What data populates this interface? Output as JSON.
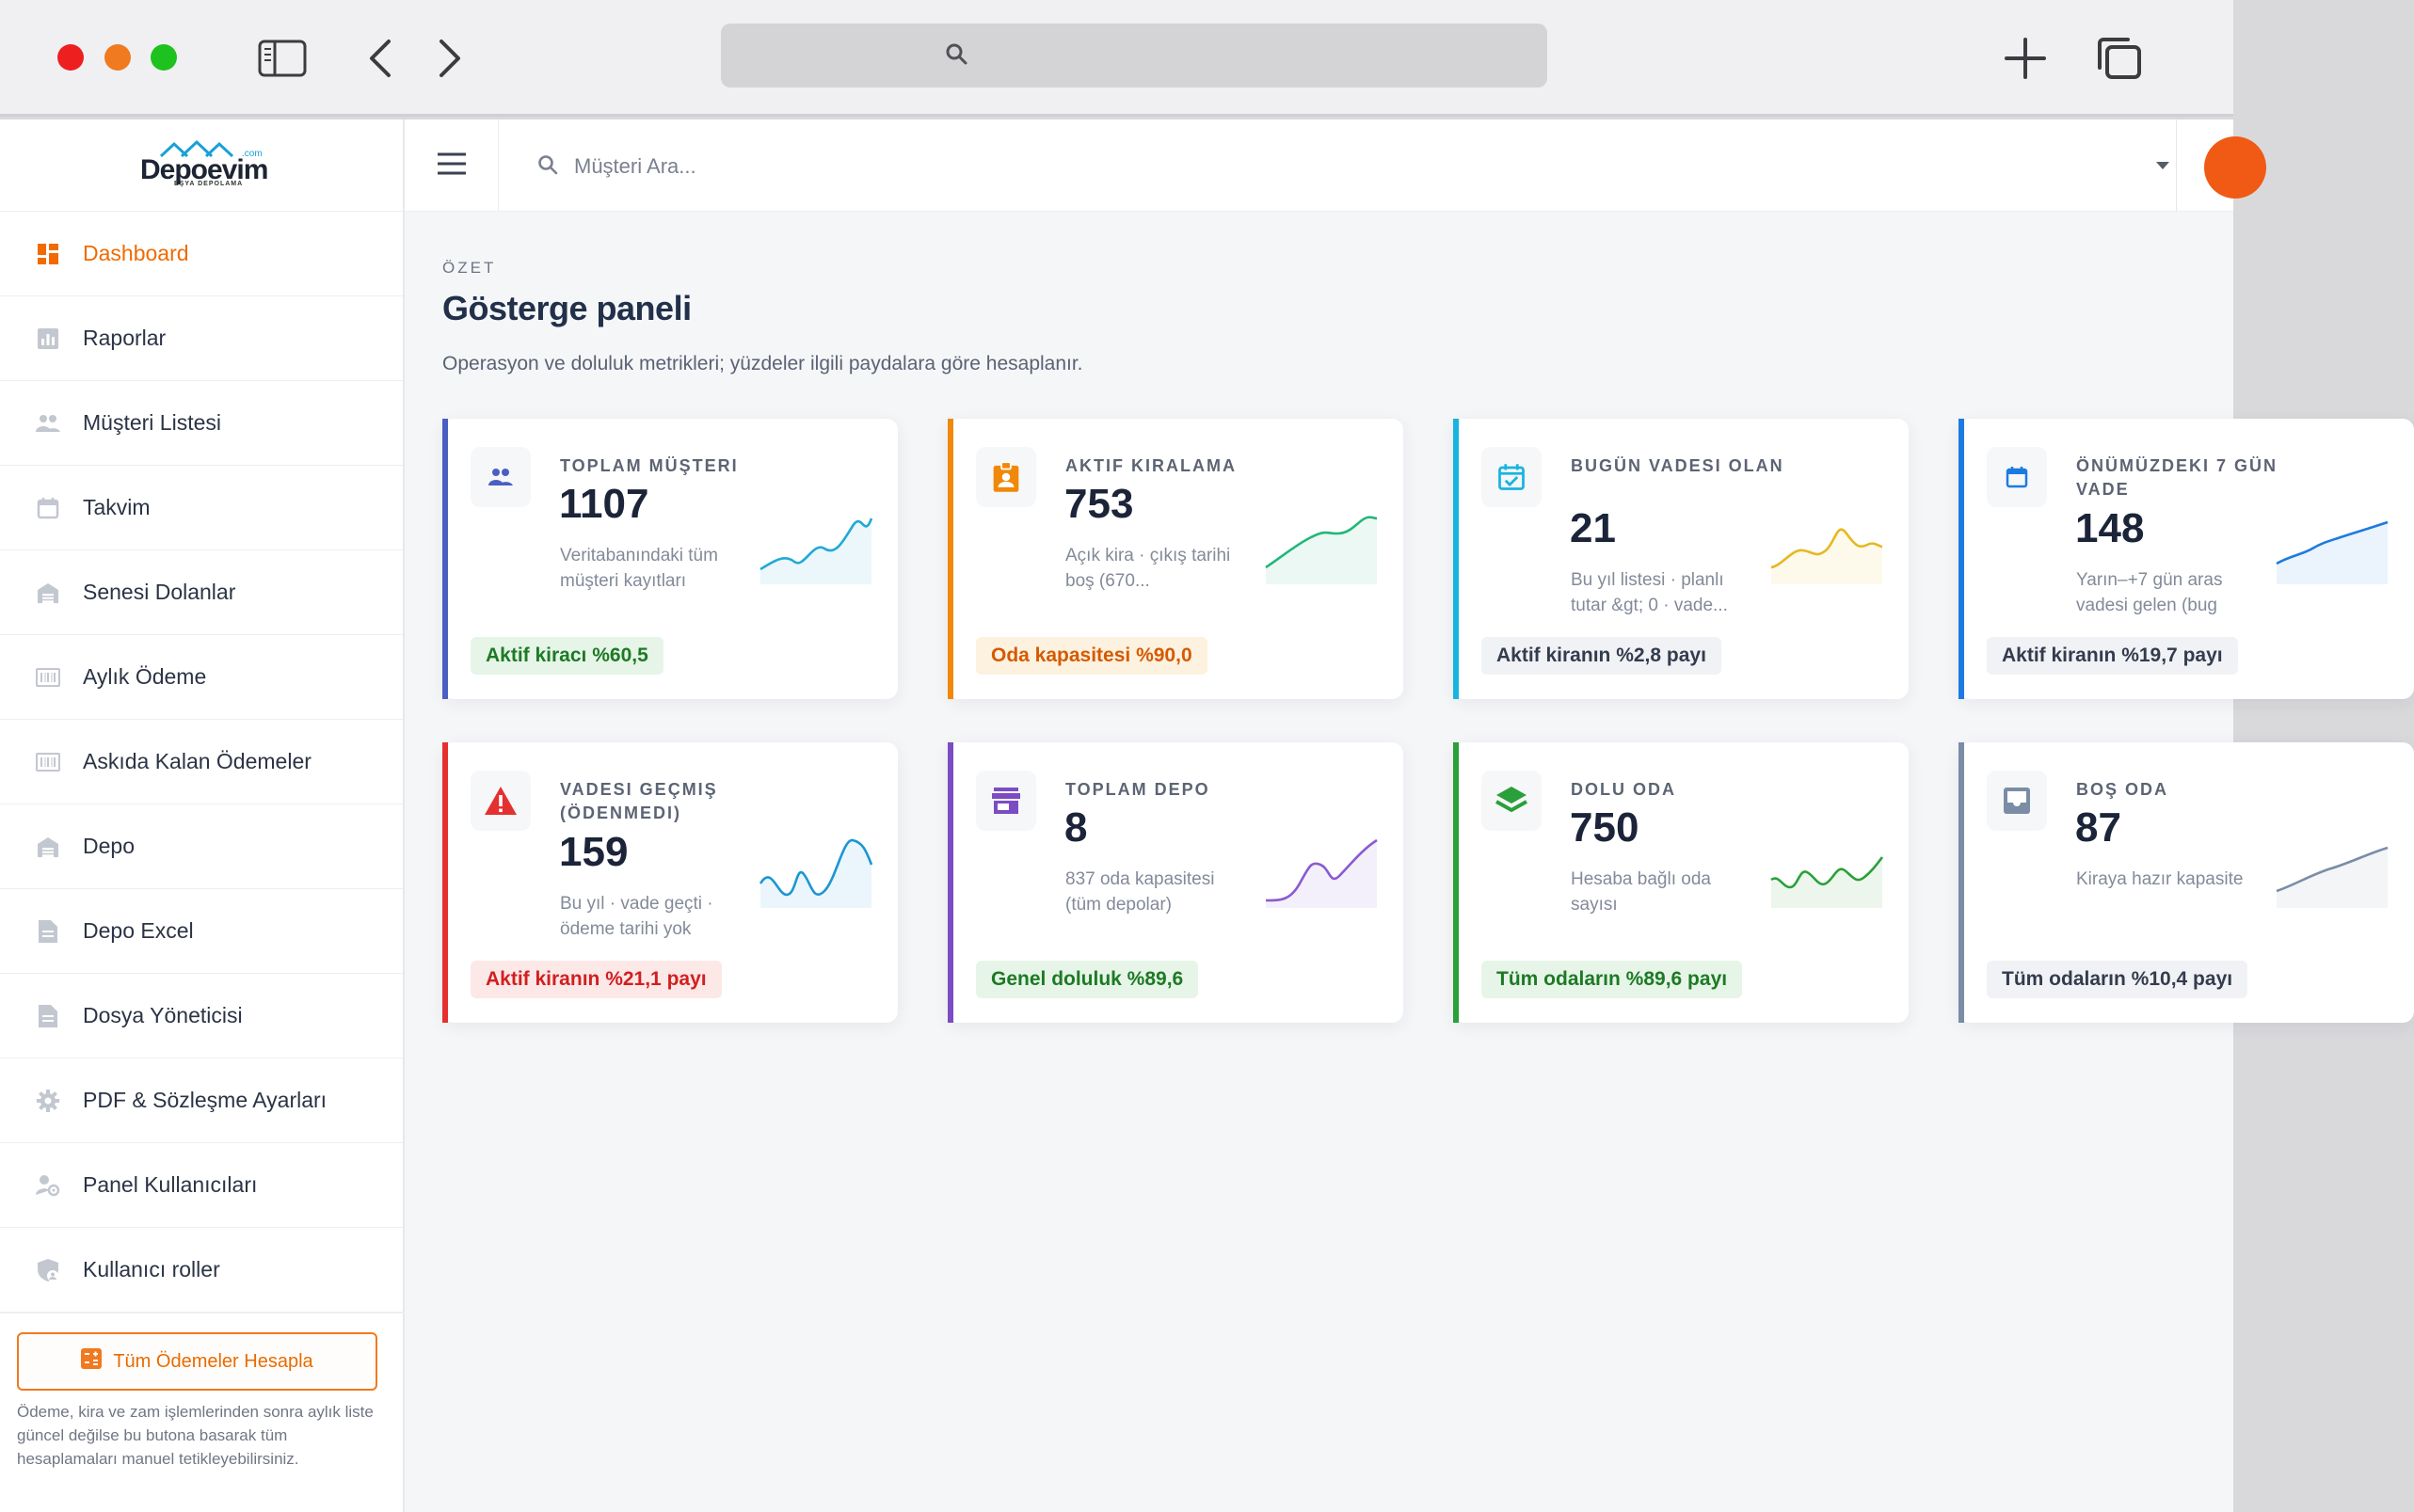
{
  "search": {
    "placeholder": "Müşteri Ara..."
  },
  "logo": {
    "name_a": "Depo",
    "name_b": "evim",
    "com": ".com",
    "tagline": "EŞYA DEPOLAMA"
  },
  "sidebar": {
    "items": [
      {
        "label": "Dashboard",
        "icon": "dashboard-icon",
        "active": true
      },
      {
        "label": "Raporlar",
        "icon": "chart-icon"
      },
      {
        "label": "Müşteri Listesi",
        "icon": "people-icon"
      },
      {
        "label": "Takvim",
        "icon": "calendar-icon"
      },
      {
        "label": "Senesi Dolanlar",
        "icon": "warehouse-icon"
      },
      {
        "label": "Aylık Ödeme",
        "icon": "barcode-icon"
      },
      {
        "label": "Askıda Kalan Ödemeler",
        "icon": "barcode-icon"
      },
      {
        "label": "Depo",
        "icon": "warehouse-icon"
      },
      {
        "label": "Depo Excel",
        "icon": "document-icon"
      },
      {
        "label": "Dosya Yöneticisi",
        "icon": "document-icon"
      },
      {
        "label": "PDF & Sözleşme Ayarları",
        "icon": "gear-icon"
      },
      {
        "label": "Panel Kullanıcıları",
        "icon": "user-gear-icon"
      },
      {
        "label": "Kullanıcı roller",
        "icon": "shield-user-icon"
      }
    ],
    "calc_button": "Tüm Ödemeler Hesapla",
    "calc_note": "Ödeme, kira ve zam işlemlerinden sonra aylık liste güncel değilse bu butona basarak tüm hesaplamaları manuel tetikleyebilirsiniz."
  },
  "main": {
    "eyebrow": "ÖZET",
    "title": "Gösterge paneli",
    "subtitle": "Operasyon ve doluluk metrikleri; yüzdeler ilgili paydalara göre hesaplanır."
  },
  "cards": [
    {
      "label": "TOPLAM MÜŞTERI",
      "value": "1107",
      "desc": "Veritabanındaki tüm müşteri kayıtları",
      "pill": "Aktif kiracı %60,5",
      "pill_style": "green",
      "accent": "#4a5fc1",
      "icon": "people-icon",
      "spark_color": "#22a9d6"
    },
    {
      "label": "AKTIF KIRALAMA",
      "value": "753",
      "desc": "Açık kira · çıkış tarihi boş (670...",
      "pill": "Oda kapasitesi %90,0",
      "pill_style": "orange",
      "accent": "#f0890a",
      "icon": "badge-icon",
      "spark_color": "#22b67a"
    },
    {
      "label": "BUGÜN VADESI OLAN",
      "value": "21",
      "desc": "Bu yıl listesi · planlı tutar &gt; 0 · vade...",
      "pill": "Aktif kiranın %2,8 payı",
      "pill_style": "gray",
      "accent": "#18b4e0",
      "icon": "calendar-check-icon",
      "spark_color": "#e6b820"
    },
    {
      "label": "ÖNÜMÜZDEKI 7 GÜN VADE",
      "value": "148",
      "desc": "Yarın–+7 gün aras vadesi gelen (bug",
      "pill": "Aktif kiranın %19,7 payı",
      "pill_style": "gray",
      "accent": "#1c7be0",
      "icon": "calendar-icon",
      "spark_color": "#1c7be0"
    },
    {
      "label": "VADESI GEÇMIŞ (ÖDENMEDI)",
      "value": "159",
      "desc": "Bu yıl · vade geçti · ödeme tarihi yok",
      "pill": "Aktif kiranın %21,1 payı",
      "pill_style": "red",
      "accent": "#e53030",
      "icon": "warning-icon",
      "spark_color": "#1b96d2"
    },
    {
      "label": "TOPLAM DEPO",
      "value": "8",
      "desc": "837 oda kapasitesi (tüm depolar)",
      "pill": "Genel doluluk %89,6",
      "pill_style": "green",
      "accent": "#7c4cc4",
      "icon": "store-icon",
      "spark_color": "#8a5ad0"
    },
    {
      "label": "DOLU ODA",
      "value": "750",
      "desc": "Hesaba bağlı oda sayısı",
      "pill": "Tüm odaların %89,6 payı",
      "pill_style": "green",
      "accent": "#2aa03a",
      "icon": "layers-icon",
      "spark_color": "#2aa03a"
    },
    {
      "label": "BOŞ ODA",
      "value": "87",
      "desc": "Kiraya hazır kapasite",
      "pill": "Tüm odaların %10,4 payı",
      "pill_style": "gray",
      "accent": "#7a8ca6",
      "icon": "inbox-icon",
      "spark_color": "#7a8ca6"
    }
  ]
}
